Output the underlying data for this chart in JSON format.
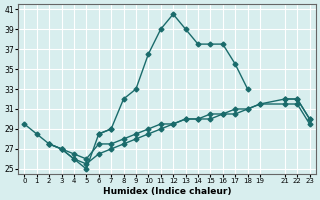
{
  "xlabel": "Humidex (Indice chaleur)",
  "ylabel": "",
  "bg_color": "#d8eeee",
  "grid_color": "#ffffff",
  "line_color": "#1a6b6b",
  "series": [
    {
      "x": [
        0,
        1,
        2,
        3,
        4,
        5,
        6,
        7,
        8,
        9,
        10,
        11,
        12,
        13,
        14,
        15,
        16,
        17,
        18,
        19,
        21,
        22,
        23
      ],
      "y": [
        29.5,
        28.5,
        27.5,
        27.0,
        26.0,
        25.0,
        28.5,
        29.0,
        32.0,
        33.0,
        36.5,
        39.0,
        40.5,
        39.0,
        37.5,
        37.5,
        37.5,
        35.5,
        33.0,
        null,
        32.0,
        32.0,
        30.0
      ]
    },
    {
      "x": [
        0,
        1,
        2,
        3,
        4,
        5,
        6,
        7,
        8,
        9,
        10,
        11,
        12,
        13,
        14,
        15,
        16,
        17,
        18,
        19,
        21,
        22,
        23
      ],
      "y": [
        null,
        null,
        null,
        null,
        null,
        null,
        28.5,
        29.0,
        null,
        null,
        null,
        null,
        null,
        null,
        null,
        null,
        null,
        null,
        null,
        null,
        null,
        null,
        null
      ]
    },
    {
      "x": [
        2,
        3,
        4,
        5,
        6,
        7,
        8,
        9,
        10,
        11,
        12,
        13,
        14,
        15,
        16,
        17,
        18,
        19,
        21,
        22,
        23
      ],
      "y": [
        27.5,
        27.0,
        26.5,
        26.0,
        27.5,
        27.5,
        28.0,
        28.5,
        29.0,
        29.5,
        29.5,
        30.0,
        30.0,
        30.5,
        30.5,
        31.0,
        31.0,
        31.5,
        32.0,
        32.0,
        30.0
      ]
    },
    {
      "x": [
        2,
        3,
        4,
        5,
        6,
        7,
        8,
        9,
        10,
        11,
        12,
        13,
        14,
        15,
        16,
        17,
        18,
        19,
        21,
        22,
        23
      ],
      "y": [
        27.5,
        27.0,
        26.0,
        25.5,
        26.5,
        27.0,
        27.5,
        28.0,
        28.5,
        29.0,
        29.5,
        30.0,
        30.0,
        30.0,
        30.5,
        30.5,
        31.0,
        31.5,
        31.5,
        31.5,
        29.5
      ]
    }
  ],
  "xlim": [
    -0.5,
    23.5
  ],
  "ylim": [
    24.5,
    41.5
  ],
  "yticks": [
    25,
    27,
    29,
    31,
    33,
    35,
    37,
    39,
    41
  ],
  "xticks": [
    0,
    1,
    2,
    3,
    4,
    5,
    6,
    7,
    8,
    9,
    10,
    11,
    12,
    13,
    14,
    15,
    16,
    17,
    18,
    19,
    21,
    22,
    23
  ]
}
